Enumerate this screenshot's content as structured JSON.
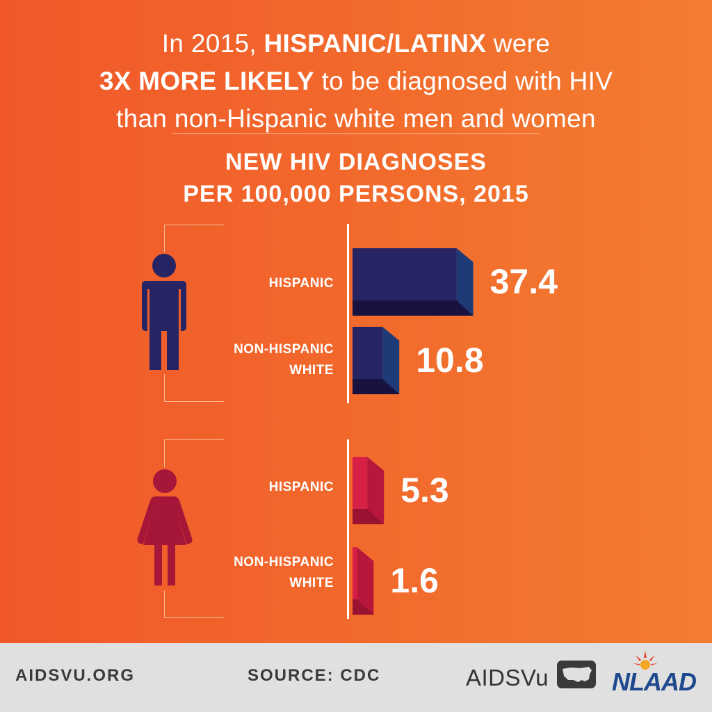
{
  "headline": {
    "l1_a": "In 2015, ",
    "l1_b": "HISPANIC/LATINX",
    "l1_c": " were",
    "l2_a": "3X MORE LIKELY",
    "l2_b": " to be diagnosed with HIV",
    "l3": "than non-Hispanic white men and women"
  },
  "footer": {
    "site": "AIDSVU.ORG",
    "source": "SOURCE: CDC",
    "logo_aidsvu": "AIDSVu",
    "logo_nlaad": "NLAAD"
  },
  "colors": {
    "male_front": "#272463",
    "male_side": "#1e3b78",
    "male_bottom": "#17123f",
    "female_front": "#d81f45",
    "female_side": "#b8173c",
    "female_bottom": "#9a1232",
    "male_icon": "#272463",
    "female_icon": "#a51638"
  },
  "icons": {
    "male": "man-icon",
    "female": "woman-icon"
  },
  "chart_data": {
    "type": "bar",
    "orientation": "horizontal",
    "title": "NEW HIV DIAGNOSES",
    "subtitle": "PER 100,000 PERSONS, 2015",
    "unit": "new HIV diagnoses per 100,000 persons",
    "groups": [
      {
        "name": "men",
        "bars": [
          {
            "category": "HISPANIC",
            "value": 37.4,
            "label": "37.4"
          },
          {
            "category_l1": "NON-HISPANIC",
            "category_l2": "WHITE",
            "value": 10.8,
            "label": "10.8"
          }
        ]
      },
      {
        "name": "women",
        "bars": [
          {
            "category": "HISPANIC",
            "value": 5.3,
            "label": "5.3"
          },
          {
            "category_l1": "NON-HISPANIC",
            "category_l2": "WHITE",
            "value": 1.6,
            "label": "1.6"
          }
        ]
      }
    ],
    "xlim": [
      0,
      40
    ]
  }
}
